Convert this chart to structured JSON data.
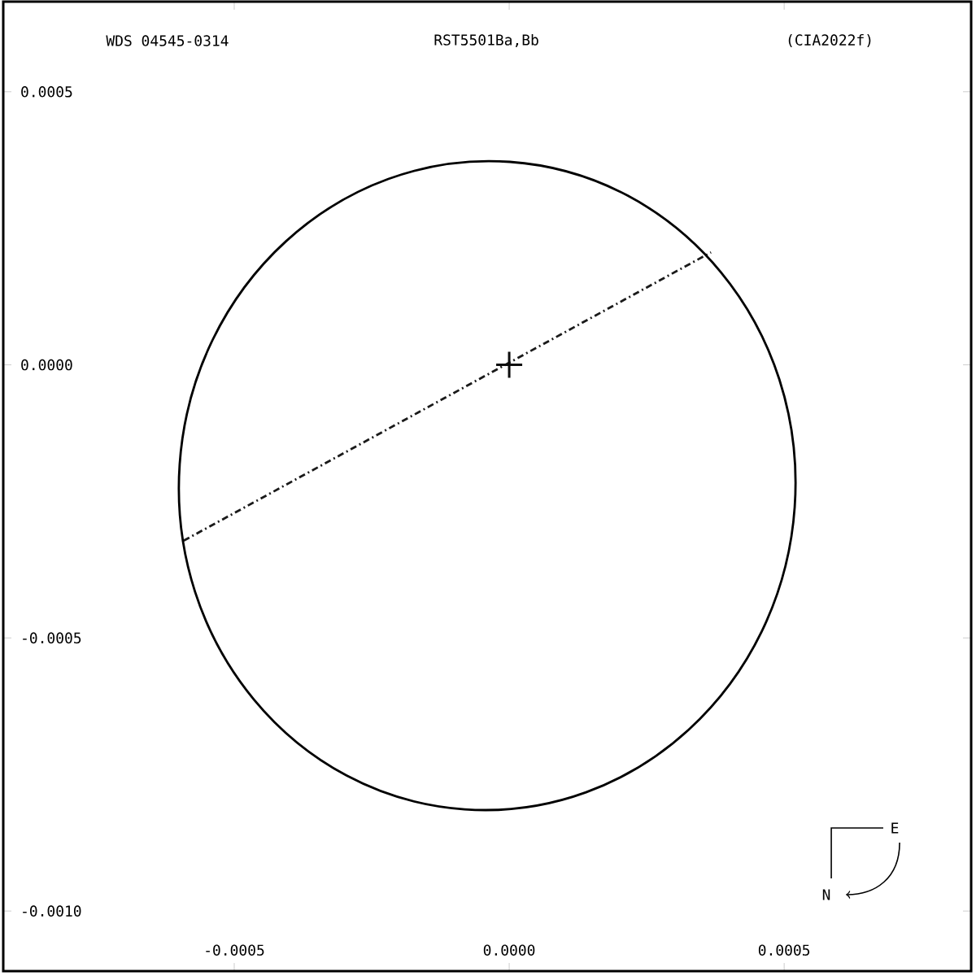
{
  "chart_data": {
    "type": "line",
    "title": "WDS 04545-0314",
    "subtitle": "RST5501Ba,Bb",
    "annotations": [
      "(CIA2022f)",
      "E",
      "N"
    ],
    "xlim": [
      -0.00092,
      0.00084
    ],
    "ylim": [
      -0.00111,
      0.000665
    ],
    "xticks": [
      {
        "value": -0.0005,
        "label": "-0.0005"
      },
      {
        "value": 0,
        "label": "0.0000"
      },
      {
        "value": 0.0005,
        "label": "0.0005"
      }
    ],
    "yticks": [
      {
        "value": 0.0005,
        "label": "0.0005"
      },
      {
        "value": 0,
        "label": "0.0000"
      },
      {
        "value": -0.0005,
        "label": "-0.0005"
      },
      {
        "value": -0.001,
        "label": "-0.0010"
      }
    ],
    "grid": false,
    "series": [
      {
        "color": "#1a1a1a",
        "line_style": "dashed",
        "x": [
          -0.000592,
          0.000367
        ],
        "values": [
          -0.000322,
          0.000206
        ]
      },
      {
        "type": "scatter",
        "color": "#0d0d0d",
        "marker": "cross",
        "x": [
          0
        ],
        "values": [
          0
        ]
      }
    ]
  }
}
